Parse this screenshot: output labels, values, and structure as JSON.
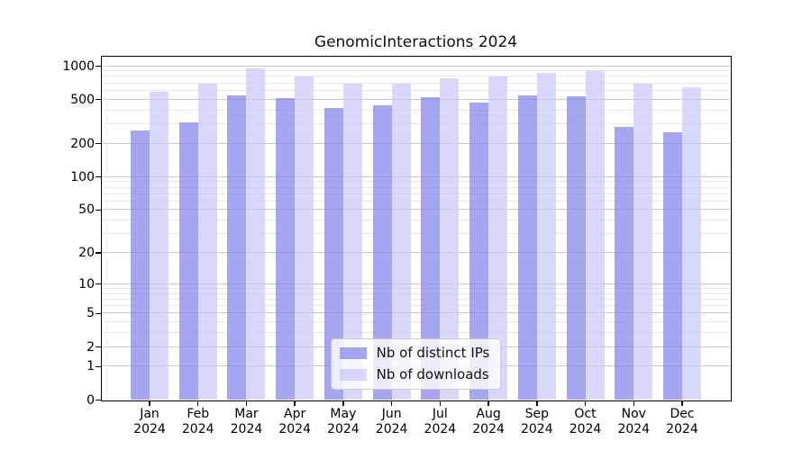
{
  "chart_data": {
    "type": "bar",
    "title": "GenomicInteractions 2024",
    "categories": [
      "Jan",
      "Feb",
      "Mar",
      "Apr",
      "May",
      "Jun",
      "Jul",
      "Aug",
      "Sep",
      "Oct",
      "Nov",
      "Dec"
    ],
    "x_year_label": "2024",
    "series": [
      {
        "name": "Nb of distinct IPs",
        "color": "#8484ea",
        "values": [
          263,
          307,
          538,
          516,
          415,
          439,
          520,
          470,
          542,
          527,
          284,
          252
        ]
      },
      {
        "name": "Nb of downloads",
        "color": "#c9c9f8",
        "values": [
          584,
          688,
          938,
          800,
          686,
          688,
          772,
          804,
          856,
          888,
          688,
          640
        ]
      }
    ],
    "bar_opacity": 0.72,
    "yscale": "log1p",
    "ylim": [
      0,
      1000
    ],
    "ytick_labels": [
      "1000",
      "500",
      "200",
      "100",
      "50",
      "20",
      "10",
      "5",
      "2",
      "1",
      "0"
    ],
    "ytick_values": [
      1000,
      500,
      200,
      100,
      50,
      20,
      10,
      5,
      2,
      1,
      0
    ],
    "minor_gridline_values": [
      900,
      800,
      700,
      600,
      400,
      300,
      90,
      80,
      70,
      60,
      40,
      30,
      9,
      8,
      7,
      6,
      4,
      3
    ],
    "legend": {
      "position": "lower center"
    },
    "colors": {
      "grid_major": "#c9c9c9",
      "grid_minor": "#e8e8e8",
      "spine": "#000000",
      "background": "#ffffff",
      "text": "#000000"
    }
  }
}
